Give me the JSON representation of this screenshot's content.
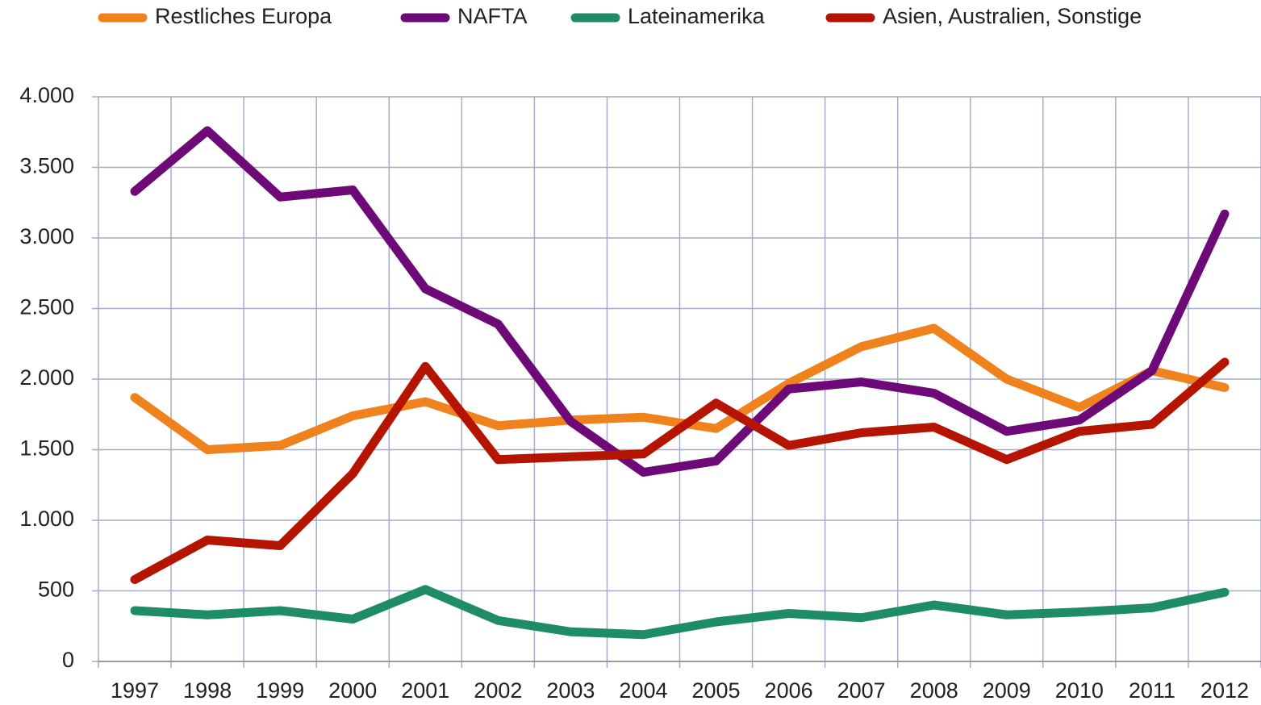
{
  "chart_data": {
    "type": "line",
    "categories": [
      "1997",
      "1998",
      "1999",
      "2000",
      "2001",
      "2002",
      "2003",
      "2004",
      "2005",
      "2006",
      "2007",
      "2008",
      "2009",
      "2010",
      "2011",
      "2012"
    ],
    "series": [
      {
        "name": "Restliches Europa",
        "color": "#f0821e",
        "values": [
          1870,
          1500,
          1530,
          1740,
          1840,
          1670,
          1710,
          1730,
          1650,
          1970,
          2230,
          2360,
          2000,
          1800,
          2060,
          1940
        ]
      },
      {
        "name": "NAFTA",
        "color": "#6e0a78",
        "values": [
          3330,
          3760,
          3290,
          3340,
          2640,
          2390,
          1700,
          1340,
          1420,
          1930,
          1980,
          1900,
          1630,
          1710,
          2060,
          3170
        ]
      },
      {
        "name": "Lateinamerika",
        "color": "#1e8c64",
        "values": [
          360,
          330,
          360,
          300,
          510,
          290,
          210,
          190,
          280,
          340,
          310,
          400,
          330,
          350,
          380,
          490
        ]
      },
      {
        "name": "Asien, Australien, Sonstige",
        "color": "#b41400",
        "values": [
          580,
          860,
          820,
          1330,
          2090,
          1430,
          1450,
          1470,
          1830,
          1530,
          1620,
          1660,
          1430,
          1630,
          1680,
          2120
        ]
      }
    ],
    "ylim": [
      0,
      4000
    ],
    "yticks": [
      0,
      500,
      {
        "value": 1000,
        "label": "1.000"
      },
      {
        "value": 1500,
        "label": "1.500"
      },
      {
        "value": 2000,
        "label": "2.000"
      },
      {
        "value": 2500,
        "label": "2.500"
      },
      {
        "value": 3000,
        "label": "3.000"
      },
      {
        "value": 3500,
        "label": "3.500"
      },
      {
        "value": 4000,
        "label": "4.000"
      }
    ],
    "grid": true,
    "legend": "top"
  }
}
